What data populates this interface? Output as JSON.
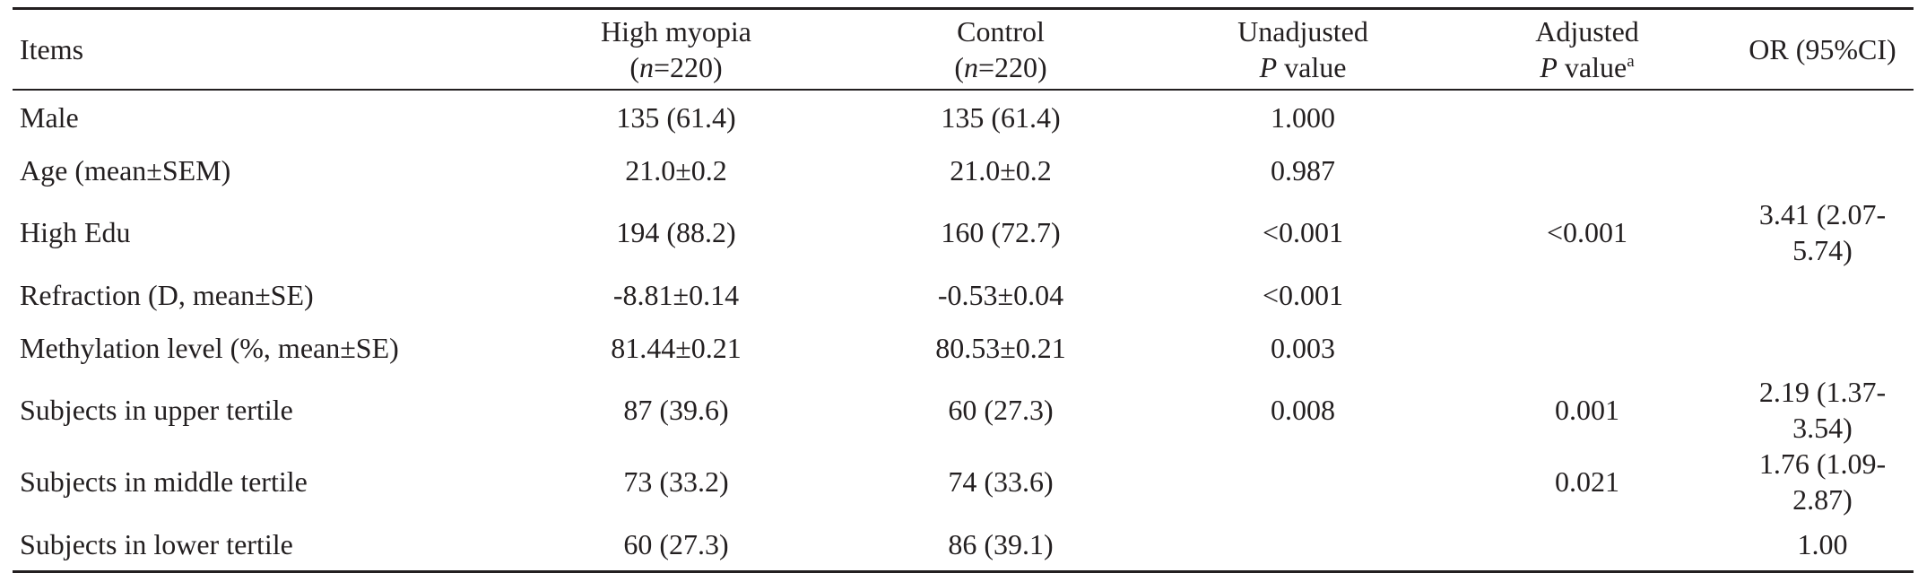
{
  "header": {
    "items": "Items",
    "high_myopia": {
      "line1": "High myopia",
      "n_letter": "n",
      "n_value": "=220",
      "open": "(",
      "close": ")"
    },
    "control": {
      "line1": "Control",
      "n_letter": "n",
      "n_value": "=220",
      "open": "(",
      "close": ")"
    },
    "unadjusted": {
      "line1": "Unadjusted",
      "p_letter": "P",
      "p_rest": " value"
    },
    "adjusted": {
      "line1": "Adjusted",
      "p_letter": "P",
      "p_rest": " value",
      "footnote": "a"
    },
    "or": "OR (95%CI)"
  },
  "rows": [
    {
      "item": "Male",
      "high": "135 (61.4)",
      "control": "135 (61.4)",
      "unadjusted": "1.000",
      "adjusted": "",
      "or": ""
    },
    {
      "item": "Age (mean±SEM)",
      "high": "21.0±0.2",
      "control": "21.0±0.2",
      "unadjusted": "0.987",
      "adjusted": "",
      "or": ""
    },
    {
      "item": "High Edu",
      "high": "194 (88.2)",
      "control": "160 (72.7)",
      "unadjusted": "<0.001",
      "adjusted": "<0.001",
      "or": "3.41 (2.07-5.74)"
    },
    {
      "item": "Refraction (D, mean±SE)",
      "high": "-8.81±0.14",
      "control": "-0.53±0.04",
      "unadjusted": "<0.001",
      "adjusted": "",
      "or": ""
    },
    {
      "item": "Methylation level (%, mean±SE)",
      "high": "81.44±0.21",
      "control": "80.53±0.21",
      "unadjusted": "0.003",
      "adjusted": "",
      "or": ""
    },
    {
      "item": "Subjects in upper tertile",
      "high": "87 (39.6)",
      "control": "60 (27.3)",
      "unadjusted": "0.008",
      "adjusted": "0.001",
      "or": "2.19 (1.37-3.54)"
    },
    {
      "item": "Subjects in middle tertile",
      "high": "73 (33.2)",
      "control": "74 (33.6)",
      "unadjusted": "",
      "adjusted": "0.021",
      "or": "1.76 (1.09-2.87)"
    },
    {
      "item": "Subjects in lower tertile",
      "high": "60 (27.3)",
      "control": "86 (39.1)",
      "unadjusted": "",
      "adjusted": "",
      "or": "1.00"
    }
  ]
}
